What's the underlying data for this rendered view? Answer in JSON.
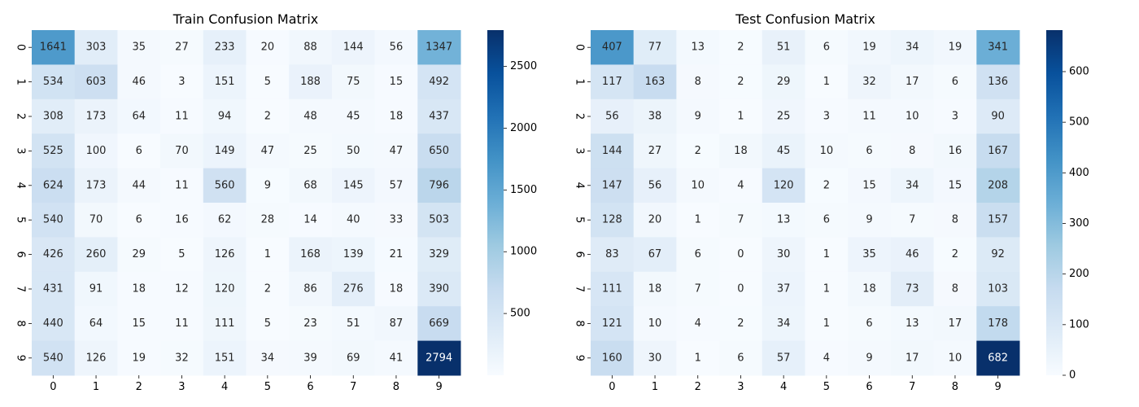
{
  "chart_data": [
    {
      "type": "heatmap",
      "title": "Train Confusion Matrix",
      "xlabel": "",
      "ylabel": "",
      "x_ticks": [
        "0",
        "1",
        "2",
        "3",
        "4",
        "5",
        "6",
        "7",
        "8",
        "9"
      ],
      "y_ticks": [
        "0",
        "1",
        "2",
        "3",
        "4",
        "5",
        "6",
        "7",
        "8",
        "9"
      ],
      "colormap": "Blues",
      "vmin": 0,
      "vmax": 2794,
      "colorbar_ticks": [
        500,
        1000,
        1500,
        2000,
        2500
      ],
      "matrix": [
        [
          1641,
          303,
          35,
          27,
          233,
          20,
          88,
          144,
          56,
          1347
        ],
        [
          534,
          603,
          46,
          3,
          151,
          5,
          188,
          75,
          15,
          492
        ],
        [
          308,
          173,
          64,
          11,
          94,
          2,
          48,
          45,
          18,
          437
        ],
        [
          525,
          100,
          6,
          70,
          149,
          47,
          25,
          50,
          47,
          650
        ],
        [
          624,
          173,
          44,
          11,
          560,
          9,
          68,
          145,
          57,
          796
        ],
        [
          540,
          70,
          6,
          16,
          62,
          28,
          14,
          40,
          33,
          503
        ],
        [
          426,
          260,
          29,
          5,
          126,
          1,
          168,
          139,
          21,
          329
        ],
        [
          431,
          91,
          18,
          12,
          120,
          2,
          86,
          276,
          18,
          390
        ],
        [
          440,
          64,
          15,
          11,
          111,
          5,
          23,
          51,
          87,
          669
        ],
        [
          540,
          126,
          19,
          32,
          151,
          34,
          39,
          69,
          41,
          2794
        ]
      ]
    },
    {
      "type": "heatmap",
      "title": "Test Confusion Matrix",
      "xlabel": "",
      "ylabel": "",
      "x_ticks": [
        "0",
        "1",
        "2",
        "3",
        "4",
        "5",
        "6",
        "7",
        "8",
        "9"
      ],
      "y_ticks": [
        "0",
        "1",
        "2",
        "3",
        "4",
        "5",
        "6",
        "7",
        "8",
        "9"
      ],
      "colormap": "Blues",
      "vmin": 0,
      "vmax": 682,
      "colorbar_ticks": [
        0,
        100,
        200,
        300,
        400,
        500,
        600
      ],
      "matrix": [
        [
          407,
          77,
          13,
          2,
          51,
          6,
          19,
          34,
          19,
          341
        ],
        [
          117,
          163,
          8,
          2,
          29,
          1,
          32,
          17,
          6,
          136
        ],
        [
          56,
          38,
          9,
          1,
          25,
          3,
          11,
          10,
          3,
          90
        ],
        [
          144,
          27,
          2,
          18,
          45,
          10,
          6,
          8,
          16,
          167
        ],
        [
          147,
          56,
          10,
          4,
          120,
          2,
          15,
          34,
          15,
          208
        ],
        [
          128,
          20,
          1,
          7,
          13,
          6,
          9,
          7,
          8,
          157
        ],
        [
          83,
          67,
          6,
          0,
          30,
          1,
          35,
          46,
          2,
          92
        ],
        [
          111,
          18,
          7,
          0,
          37,
          1,
          18,
          73,
          8,
          103
        ],
        [
          121,
          10,
          4,
          2,
          34,
          1,
          6,
          13,
          17,
          178
        ],
        [
          160,
          30,
          1,
          6,
          57,
          4,
          9,
          17,
          10,
          682
        ]
      ]
    }
  ]
}
